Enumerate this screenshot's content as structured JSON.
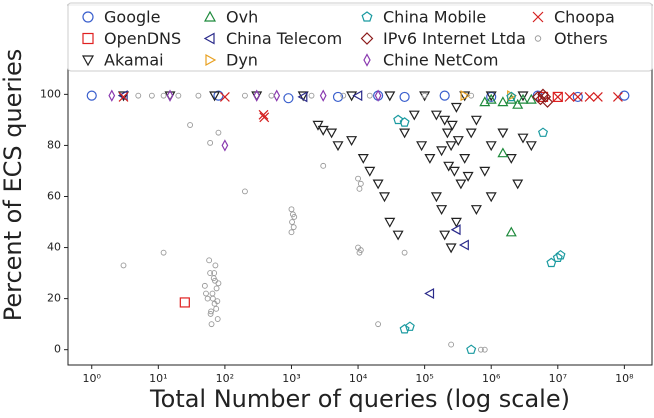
{
  "chart_data": {
    "type": "scatter",
    "xlabel": "Total Number of queries (log scale)",
    "ylabel": "Percent of ECS queries",
    "xscale": "log",
    "xlim": [
      0.44,
      260000000
    ],
    "ylim": [
      -6,
      135
    ],
    "xticks": [
      {
        "value": 1,
        "label": "10⁰"
      },
      {
        "value": 10,
        "label": "10¹"
      },
      {
        "value": 100,
        "label": "10²"
      },
      {
        "value": 1000,
        "label": "10³"
      },
      {
        "value": 10000,
        "label": "10⁴"
      },
      {
        "value": 100000,
        "label": "10⁵"
      },
      {
        "value": 1000000,
        "label": "10⁶"
      },
      {
        "value": 10000000,
        "label": "10⁷"
      },
      {
        "value": 100000000,
        "label": "10⁸"
      }
    ],
    "yticks": [
      0,
      20,
      40,
      60,
      80,
      100
    ],
    "legend": "top",
    "series": [
      {
        "name": "Google",
        "color": "#3a5fcd",
        "marker": "circle",
        "x": [
          1,
          80,
          900,
          5000,
          20000,
          50000,
          200000,
          1000000,
          5000000,
          20000000,
          100000000
        ],
        "values": [
          99.5,
          99.5,
          98.5,
          99,
          99.5,
          99,
          99.5,
          99,
          99.5,
          99,
          99.5
        ]
      },
      {
        "name": "OpenDNS",
        "color": "#e02020",
        "marker": "square",
        "x": [
          25,
          6000000,
          10000000
        ],
        "values": [
          18.5,
          99,
          99
        ]
      },
      {
        "name": "Akamai",
        "color": "#222222",
        "marker": "tri-down",
        "x": [
          3,
          15,
          70,
          300,
          1500,
          8000,
          30000,
          100000,
          400000,
          1000000,
          3000000,
          2500,
          3000,
          4000,
          5000,
          8000,
          12000,
          15000,
          20000,
          25000,
          30000,
          40000,
          50000,
          70000,
          90000,
          120000,
          150000,
          180000,
          200000,
          220000,
          250000,
          280000,
          300000,
          350000,
          400000,
          500000,
          600000,
          800000,
          1000000,
          1500000,
          2000000,
          2500000,
          3000000,
          4000000,
          200000,
          250000,
          300000,
          1000000,
          150000,
          600000,
          180000,
          230000,
          260000,
          320000,
          450000
        ],
        "values": [
          99.5,
          99.5,
          99.5,
          99.5,
          99.5,
          99.5,
          99.5,
          99.5,
          99.5,
          99.5,
          99.5,
          88,
          86,
          85,
          80,
          82,
          75,
          70,
          65,
          60,
          50,
          45,
          85,
          92,
          80,
          75,
          60,
          55,
          90,
          85,
          80,
          70,
          50,
          65,
          75,
          85,
          90,
          70,
          80,
          85,
          75,
          65,
          83,
          80,
          45,
          40,
          95,
          60,
          92,
          55,
          78,
          72,
          88,
          82,
          68
        ]
      },
      {
        "name": "Ovh",
        "color": "#1e8a3c",
        "marker": "tri-up",
        "x": [
          1000000,
          1500000,
          2000000,
          2500000,
          3000000,
          1500000,
          2000000,
          4000000,
          800000
        ],
        "values": [
          98,
          97,
          98,
          96,
          98,
          77,
          46,
          98,
          97
        ]
      },
      {
        "name": "China Telecom",
        "color": "#2a2a8a",
        "marker": "tri-left",
        "x": [
          3,
          10000,
          300000,
          400000,
          120000,
          1500
        ],
        "values": [
          99.5,
          99.5,
          47,
          41,
          22,
          99
        ]
      },
      {
        "name": "Dyn",
        "color": "#e8a020",
        "marker": "tri-right",
        "x": [
          400000,
          2000000
        ],
        "values": [
          99.5,
          99.5
        ]
      },
      {
        "name": "China Mobile",
        "color": "#1a9aa0",
        "marker": "pentagon",
        "x": [
          40000,
          50000,
          50000,
          60000,
          500000,
          8000000,
          10000000,
          11000000,
          6000000,
          2000000
        ],
        "values": [
          90,
          89,
          8,
          9,
          0,
          34,
          36,
          37,
          85,
          99
        ]
      },
      {
        "name": "IPv6 Internet Ltda",
        "color": "#8b1a1a",
        "marker": "diamond",
        "x": [
          5000000,
          5500000,
          6000000,
          7000000,
          6500000
        ],
        "values": [
          99,
          98,
          100,
          97,
          99
        ]
      },
      {
        "name": "Chine NetCom",
        "color": "#8a3ab0",
        "marker": "thin-diamond",
        "x": [
          2,
          15,
          300,
          600,
          3000,
          100,
          20000
        ],
        "values": [
          99.5,
          99.5,
          99.5,
          99.5,
          99.5,
          80,
          99.5
        ]
      },
      {
        "name": "Choopa",
        "color": "#d42020",
        "marker": "x",
        "x": [
          3,
          100,
          380,
          390,
          10000000,
          20000000,
          40000000,
          80000000,
          15000000,
          30000000
        ],
        "values": [
          99,
          99,
          92,
          91,
          99,
          99,
          99,
          99,
          99,
          99
        ]
      },
      {
        "name": "Others",
        "color": "#999999",
        "marker": "dot",
        "x": [
          50,
          55,
          60,
          62,
          65,
          68,
          70,
          72,
          75,
          78,
          80,
          58,
          63,
          66,
          71,
          74,
          52,
          69,
          77,
          61,
          1000,
          1020,
          1050,
          1080,
          1100,
          1000,
          10000,
          10500,
          11000,
          10000,
          10500,
          11000,
          50000,
          30,
          5,
          8,
          12,
          20,
          40,
          200,
          500,
          2000,
          6000,
          15000,
          100000,
          700000,
          800000,
          250000,
          3,
          12,
          60,
          80,
          3000,
          20000,
          200,
          500000
        ],
        "values": [
          25,
          20,
          30,
          15,
          22,
          28,
          18,
          33,
          24,
          12,
          26,
          35,
          10,
          20,
          27,
          16,
          22,
          30,
          19,
          14,
          55,
          50,
          53,
          48,
          52,
          46,
          40,
          38,
          39,
          67,
          63,
          65,
          38,
          88,
          99.5,
          99.5,
          99.5,
          99.5,
          99.5,
          99.5,
          99.5,
          99.5,
          99.5,
          99.5,
          99.5,
          0,
          0,
          2,
          33,
          38,
          81,
          85,
          72,
          10,
          62,
          99.5
        ]
      }
    ]
  }
}
